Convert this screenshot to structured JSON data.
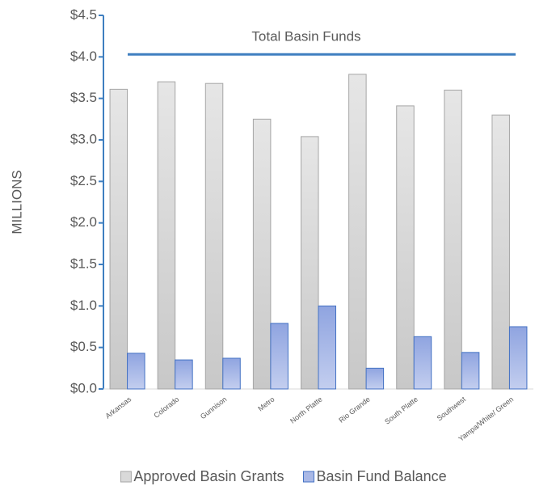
{
  "chart_data": {
    "type": "bar",
    "y_axis_label": "MILLIONS",
    "categories": [
      "Arkansas",
      "Colorado",
      "Gunnison",
      "Metro",
      "North Platte",
      "Rio Grande",
      "South Platte",
      "Southwest",
      "Yampa/White/ Green"
    ],
    "series": [
      {
        "name": "Approved Basin Grants",
        "color": "#d9d9d9",
        "values": [
          3.61,
          3.7,
          3.68,
          3.25,
          3.04,
          3.79,
          3.41,
          3.6,
          3.3
        ]
      },
      {
        "name": "Basin Fund Balance",
        "color": "#a9b8e6",
        "values": [
          0.43,
          0.35,
          0.37,
          0.79,
          1.0,
          0.25,
          0.63,
          0.44,
          0.75
        ]
      }
    ],
    "reference_line": {
      "label": "Total Basin Funds",
      "value": 4.03,
      "color": "#3f7fc0"
    },
    "ylim": [
      0,
      4.5
    ],
    "yticks": [
      {
        "value": 0,
        "label": "$0.0"
      },
      {
        "value": 0.5,
        "label": "$0.5"
      },
      {
        "value": 1,
        "label": "$1.0"
      },
      {
        "value": 1.5,
        "label": "$1.5"
      },
      {
        "value": 2,
        "label": "$2.0"
      },
      {
        "value": 2.5,
        "label": "$2.5"
      },
      {
        "value": 3,
        "label": "$3.0"
      },
      {
        "value": 3.5,
        "label": "$3.5"
      },
      {
        "value": 4,
        "label": "$4.0"
      },
      {
        "value": 4.5,
        "label": "$4.5"
      }
    ]
  }
}
